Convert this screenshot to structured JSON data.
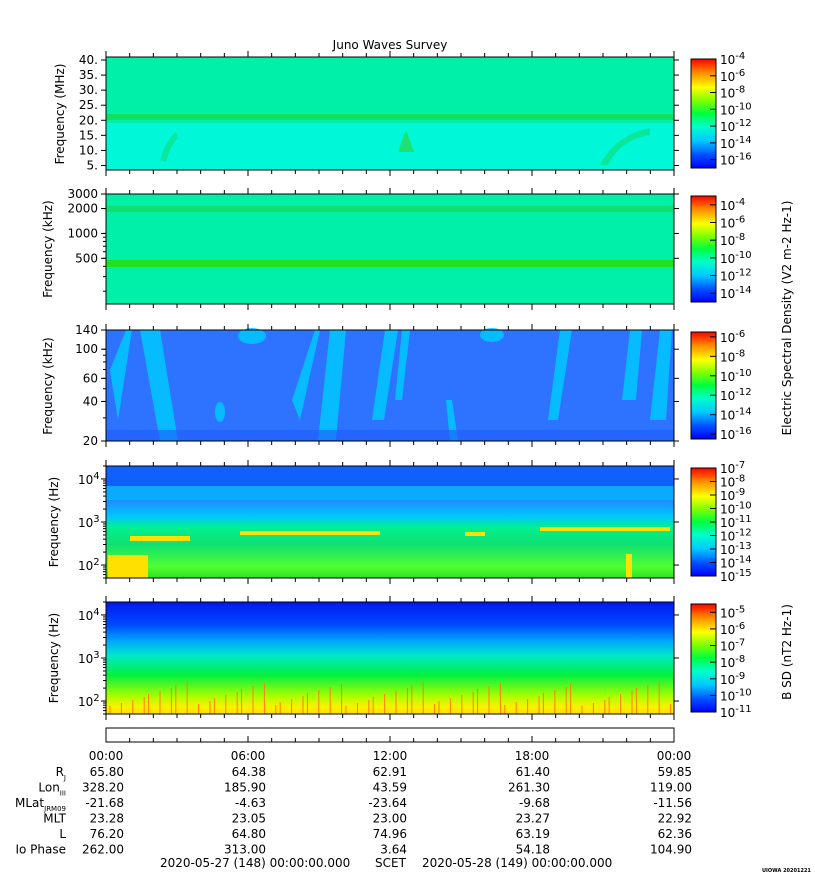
{
  "title": "Juno Waves Survey",
  "footer": {
    "start": "2020-05-27 (148) 00:00:00.000",
    "scet": "SCET",
    "end": "2020-05-28 (149) 00:00:00.000",
    "credit": "UIOWA 20201221"
  },
  "colorbar_labels": {
    "electric": "Electric Spectral Density (V2 m-2 Hz-1)",
    "magnetic": "B SD (nT2 Hz-1)"
  },
  "chart_data": [
    {
      "type": "heatmap",
      "ylabel": "Frequency (MHz)",
      "yticks": [
        "40.",
        "35.",
        "30.",
        "25.",
        "20.",
        "15.",
        "10.",
        "5."
      ],
      "ylim": [
        3.5,
        41
      ],
      "colorbar_ticks": [
        "-4",
        "-6",
        "-8",
        "-10",
        "-12",
        "-14",
        "-16"
      ],
      "colorbar_range": [
        -17,
        -4
      ]
    },
    {
      "type": "heatmap",
      "ylabel": "Frequency (kHz)",
      "yticks": [
        "3000",
        "2000",
        "1000",
        "500"
      ],
      "ylim": [
        140,
        3000
      ],
      "colorbar_ticks": [
        "-4",
        "-6",
        "-8",
        "-10",
        "-12",
        "-14"
      ],
      "colorbar_range": [
        -15,
        -3
      ]
    },
    {
      "type": "heatmap",
      "ylabel": "Frequency (kHz)",
      "yticks": [
        "140",
        "100",
        "60",
        "40",
        "20"
      ],
      "ylim": [
        20,
        140
      ],
      "colorbar_ticks": [
        "-6",
        "-8",
        "-10",
        "-12",
        "-14",
        "-16"
      ],
      "colorbar_range": [
        -16.5,
        -5.5
      ]
    },
    {
      "type": "heatmap",
      "ylabel": "Frequency (Hz)",
      "yticks": [
        "4",
        "3",
        "2"
      ],
      "ylim": [
        50,
        20000
      ],
      "colorbar_ticks": [
        "-7",
        "-8",
        "-9",
        "-10",
        "-11",
        "-12",
        "-13",
        "-14",
        "-15"
      ],
      "colorbar_range": [
        -15,
        -7
      ]
    },
    {
      "type": "heatmap",
      "ylabel": "Frequency (Hz)",
      "yticks": [
        "4",
        "3",
        "2"
      ],
      "ylim": [
        50,
        20000
      ],
      "colorbar_ticks": [
        "-5",
        "-6",
        "-7",
        "-8",
        "-9",
        "-10",
        "-11"
      ],
      "colorbar_range": [
        -11,
        -4.5
      ]
    }
  ],
  "time_axis": {
    "ticks": [
      "00:00",
      "06:00",
      "12:00",
      "18:00",
      "00:00"
    ]
  },
  "ephemeris": [
    {
      "label": "R",
      "sub": "J",
      "values": [
        "65.80",
        "64.38",
        "62.91",
        "61.40",
        "59.85"
      ]
    },
    {
      "label": "Lon",
      "sub": "III",
      "values": [
        "328.20",
        "185.90",
        "43.59",
        "261.30",
        "119.00"
      ]
    },
    {
      "label": "MLat",
      "sub": "JRM09",
      "values": [
        "-21.68",
        "-4.63",
        "-23.64",
        "-9.68",
        "-11.56"
      ]
    },
    {
      "label": "MLT",
      "sub": "",
      "values": [
        "23.28",
        "23.05",
        "23.00",
        "23.27",
        "22.92"
      ]
    },
    {
      "label": "L",
      "sub": "",
      "values": [
        "76.20",
        "64.80",
        "74.96",
        "63.19",
        "62.36"
      ]
    },
    {
      "label": "Io Phase",
      "sub": "",
      "values": [
        "262.00",
        "313.00",
        "3.64",
        "54.18",
        "104.90"
      ]
    }
  ]
}
